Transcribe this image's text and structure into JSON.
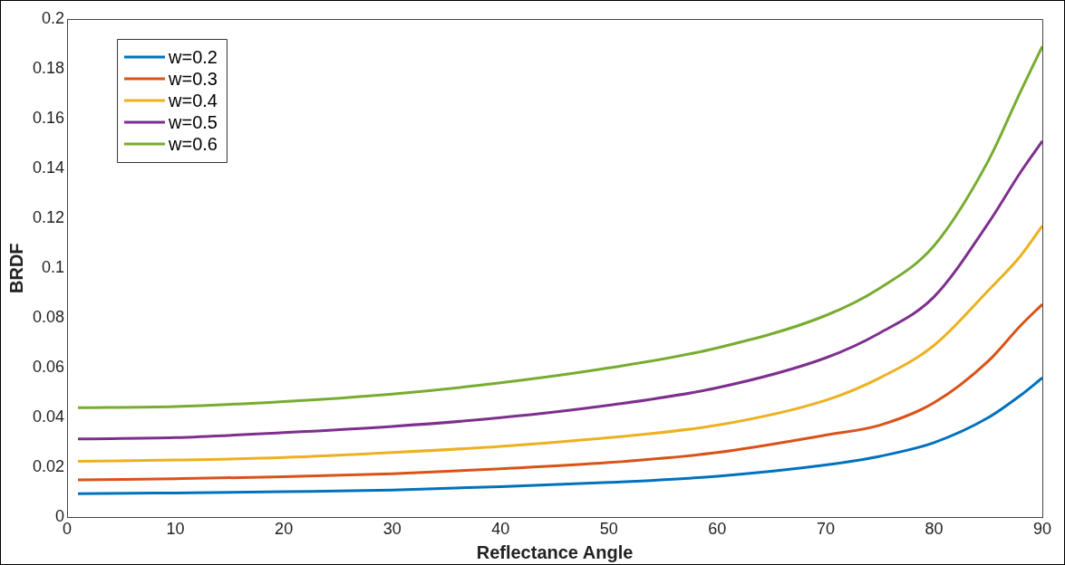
{
  "chart_data": {
    "type": "line",
    "xlabel": "Reflectance Angle",
    "ylabel": "BRDF",
    "x": [
      1,
      10,
      20,
      30,
      40,
      50,
      60,
      70,
      75,
      80,
      85,
      88,
      90
    ],
    "series": [
      {
        "name": "w=0.2",
        "color": "#0072bd",
        "values": [
          0.0095,
          0.0098,
          0.0103,
          0.011,
          0.0123,
          0.014,
          0.0165,
          0.021,
          0.0245,
          0.03,
          0.04,
          0.049,
          0.056
        ]
      },
      {
        "name": "w=0.3",
        "color": "#d95319",
        "values": [
          0.015,
          0.0155,
          0.0163,
          0.0175,
          0.0195,
          0.022,
          0.026,
          0.033,
          0.037,
          0.046,
          0.0627,
          0.077,
          0.0855
        ]
      },
      {
        "name": "w=0.4",
        "color": "#edb120",
        "values": [
          0.0225,
          0.023,
          0.024,
          0.026,
          0.0285,
          0.032,
          0.037,
          0.047,
          0.056,
          0.069,
          0.091,
          0.105,
          0.117
        ]
      },
      {
        "name": "w=0.5",
        "color": "#7e2f8e",
        "values": [
          0.0315,
          0.032,
          0.034,
          0.0365,
          0.04,
          0.045,
          0.052,
          0.064,
          0.074,
          0.0885,
          0.118,
          0.1386,
          0.151
        ]
      },
      {
        "name": "w=0.6",
        "color": "#77ac30",
        "values": [
          0.044,
          0.0445,
          0.0465,
          0.0495,
          0.054,
          0.06,
          0.068,
          0.081,
          0.092,
          0.109,
          0.143,
          0.171,
          0.189
        ]
      }
    ],
    "xlim": [
      0,
      90
    ],
    "xticks": [
      0,
      10,
      20,
      30,
      40,
      50,
      60,
      70,
      80,
      90
    ],
    "ylim": [
      0,
      0.2
    ],
    "yticks": [
      0,
      0.02,
      0.04,
      0.06,
      0.08,
      0.1,
      0.12,
      0.14,
      0.16,
      0.18,
      0.2
    ],
    "grid": false,
    "legend": "top left",
    "marker": "none",
    "line_style": "solid"
  }
}
